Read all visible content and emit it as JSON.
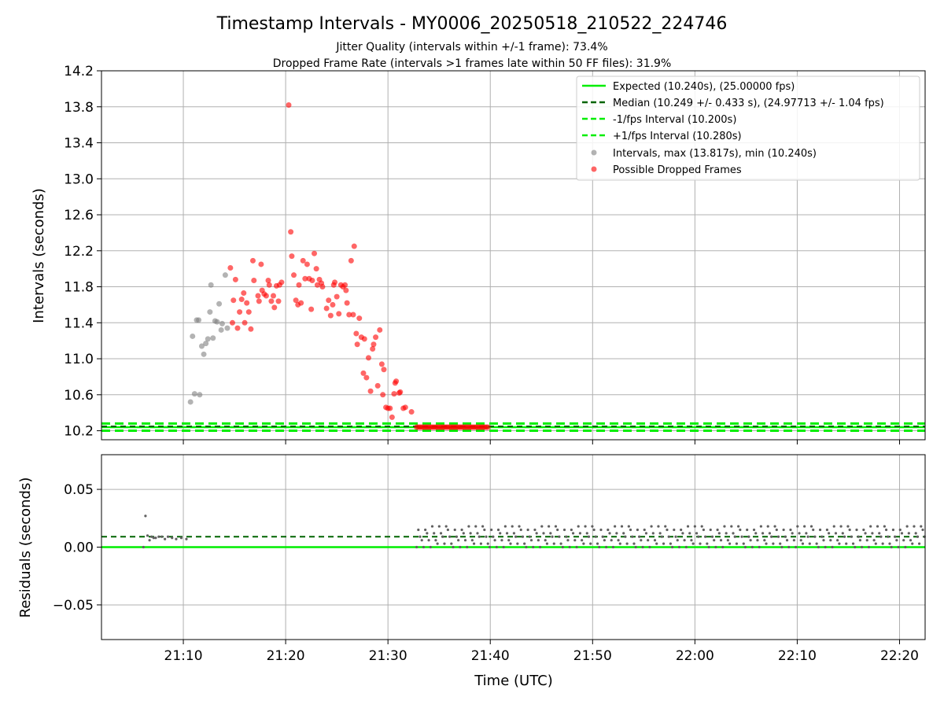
{
  "figure": {
    "title": "Timestamp Intervals - MY0006_20250518_210522_224746",
    "subtitle_jitter": "Jitter Quality (intervals within +/-1 frame): 73.4%",
    "subtitle_dropped": "Dropped Frame Rate (intervals >1 frames late within 50 FF files): 31.9%",
    "xlabel": "Time (UTC)"
  },
  "legend": {
    "expected": "Expected (10.240s), (25.00000 fps)",
    "median": "Median (10.249 +/- 0.433 s), (24.97713 +/- 1.04 fps)",
    "minus": "-1/fps Interval (10.200s)",
    "plus": "+1/fps Interval (10.280s)",
    "intervals": "Intervals, max (13.817s), min (10.240s)",
    "dropped": "Possible Dropped Frames"
  },
  "colors": {
    "expected": "#00ee00",
    "median": "#006400",
    "bounds": "#00ee00",
    "intervals": "#808080",
    "dropped": "#ff0000",
    "grid": "#b0b0b0"
  },
  "x_ticks": [
    "21:10",
    "21:20",
    "21:30",
    "21:40",
    "21:50",
    "22:00",
    "22:10",
    "22:20"
  ],
  "chart_data": [
    {
      "type": "scatter",
      "title": "Timestamp Intervals - MY0006_20250518_210522_224746",
      "xlabel": "",
      "ylabel": "Intervals (seconds)",
      "x_unit": "minutes after 21:00 UTC",
      "xlim": [
        "21:02",
        "22:22.5"
      ],
      "ylim": [
        10.1,
        14.2
      ],
      "yticks": [
        "10.2",
        "10.6",
        "11.0",
        "11.4",
        "11.8",
        "12.2",
        "12.6",
        "13.0",
        "13.4",
        "13.8",
        "14.2"
      ],
      "grid": true,
      "legend_position": "top-right",
      "lines": {
        "expected": 10.24,
        "median": 10.249,
        "minus_1_fps": 10.2,
        "plus_1_fps": 10.28
      },
      "series": [
        {
          "name": "Intervals, max (13.817s), min (10.240s)",
          "color": "#808080",
          "points": [
            [
              10.7,
              10.52
            ],
            [
              10.9,
              11.25
            ],
            [
              11.1,
              10.61
            ],
            [
              11.3,
              11.43
            ],
            [
              11.5,
              11.43
            ],
            [
              11.6,
              10.6
            ],
            [
              11.8,
              11.14
            ],
            [
              12.0,
              11.05
            ],
            [
              12.2,
              11.17
            ],
            [
              12.4,
              11.22
            ],
            [
              12.6,
              11.52
            ],
            [
              12.7,
              11.82
            ],
            [
              12.9,
              11.23
            ],
            [
              13.1,
              11.42
            ],
            [
              13.3,
              11.41
            ],
            [
              13.5,
              11.61
            ],
            [
              13.7,
              11.32
            ],
            [
              13.8,
              11.39
            ],
            [
              14.1,
              11.93
            ],
            [
              14.3,
              11.34
            ]
          ]
        },
        {
          "name": "Possible Dropped Frames",
          "color": "#ff0000",
          "points": [
            [
              14.6,
              12.01
            ],
            [
              14.8,
              11.4
            ],
            [
              14.9,
              11.65
            ],
            [
              15.1,
              11.88
            ],
            [
              15.3,
              11.34
            ],
            [
              15.5,
              11.52
            ],
            [
              15.7,
              11.66
            ],
            [
              15.9,
              11.73
            ],
            [
              16.0,
              11.4
            ],
            [
              16.2,
              11.62
            ],
            [
              16.4,
              11.52
            ],
            [
              16.6,
              11.33
            ],
            [
              16.8,
              12.09
            ],
            [
              16.9,
              11.87
            ],
            [
              17.3,
              11.7
            ],
            [
              17.4,
              11.64
            ],
            [
              17.6,
              12.05
            ],
            [
              17.7,
              11.76
            ],
            [
              17.9,
              11.72
            ],
            [
              18.1,
              11.7
            ],
            [
              18.3,
              11.87
            ],
            [
              18.4,
              11.82
            ],
            [
              18.6,
              11.64
            ],
            [
              18.8,
              11.7
            ],
            [
              18.9,
              11.57
            ],
            [
              19.1,
              11.81
            ],
            [
              19.3,
              11.64
            ],
            [
              19.4,
              11.82
            ],
            [
              19.6,
              11.85
            ],
            [
              20.3,
              13.82
            ],
            [
              20.5,
              12.41
            ],
            [
              20.6,
              12.14
            ],
            [
              20.8,
              11.93
            ],
            [
              21.0,
              11.65
            ],
            [
              21.2,
              11.6
            ],
            [
              21.3,
              11.82
            ],
            [
              21.5,
              11.62
            ],
            [
              21.7,
              12.09
            ],
            [
              21.9,
              11.89
            ],
            [
              22.1,
              12.05
            ],
            [
              22.3,
              11.89
            ],
            [
              22.5,
              11.55
            ],
            [
              22.6,
              11.87
            ],
            [
              22.8,
              12.17
            ],
            [
              23.0,
              12.0
            ],
            [
              23.1,
              11.82
            ],
            [
              23.3,
              11.88
            ],
            [
              23.5,
              11.84
            ],
            [
              23.6,
              11.8
            ],
            [
              24.0,
              11.56
            ],
            [
              24.2,
              11.65
            ],
            [
              24.4,
              11.48
            ],
            [
              24.6,
              11.6
            ],
            [
              24.7,
              11.82
            ],
            [
              24.8,
              11.85
            ],
            [
              25.0,
              11.69
            ],
            [
              25.2,
              11.5
            ],
            [
              25.4,
              11.82
            ],
            [
              25.6,
              11.8
            ],
            [
              25.8,
              11.82
            ],
            [
              25.9,
              11.76
            ],
            [
              26.0,
              11.62
            ],
            [
              26.2,
              11.49
            ],
            [
              26.4,
              12.09
            ],
            [
              26.6,
              11.49
            ],
            [
              26.7,
              12.25
            ],
            [
              26.9,
              11.28
            ],
            [
              27.0,
              11.16
            ],
            [
              27.2,
              11.45
            ],
            [
              27.4,
              11.24
            ],
            [
              27.6,
              10.84
            ],
            [
              27.7,
              11.22
            ],
            [
              27.9,
              10.79
            ],
            [
              28.1,
              11.01
            ],
            [
              28.3,
              10.64
            ],
            [
              28.5,
              11.11
            ],
            [
              28.6,
              11.16
            ],
            [
              28.8,
              11.24
            ],
            [
              29.0,
              10.7
            ],
            [
              29.2,
              11.32
            ],
            [
              29.4,
              10.94
            ],
            [
              29.5,
              10.6
            ],
            [
              29.6,
              10.88
            ],
            [
              29.8,
              10.46
            ],
            [
              30.0,
              10.45
            ],
            [
              30.2,
              10.45
            ],
            [
              30.4,
              10.35
            ],
            [
              30.6,
              10.61
            ],
            [
              30.7,
              10.73
            ],
            [
              30.8,
              10.75
            ],
            [
              31.1,
              10.62
            ],
            [
              31.2,
              10.63
            ],
            [
              31.5,
              10.45
            ],
            [
              31.7,
              10.46
            ],
            [
              32.3,
              10.41
            ]
          ],
          "cluster_at_10_24": {
            "from": "21:32.8",
            "to": "21:39.8"
          }
        }
      ]
    },
    {
      "type": "scatter",
      "xlabel": "Time (UTC)",
      "ylabel": "Residuals (seconds)",
      "ylim": [
        -0.08,
        0.08
      ],
      "yticks": [
        "−0.05",
        "0.00",
        "0.05"
      ],
      "grid": true,
      "lines": {
        "expected": 0.0,
        "median": 0.009
      },
      "series": [
        {
          "name": "Residuals",
          "color": "#808080",
          "early_points": [
            [
              6.1,
              0.0
            ],
            [
              6.3,
              0.027
            ],
            [
              6.5,
              0.01
            ],
            [
              6.7,
              0.006
            ],
            [
              6.9,
              0.009
            ],
            [
              7.1,
              0.008
            ],
            [
              7.3,
              0.008
            ],
            [
              7.6,
              0.009
            ],
            [
              7.9,
              0.009
            ],
            [
              8.2,
              0.007
            ],
            [
              8.5,
              0.009
            ],
            [
              8.9,
              0.008
            ],
            [
              9.3,
              0.007
            ],
            [
              9.8,
              0.008
            ],
            [
              10.3,
              0.007
            ]
          ],
          "late_band": {
            "from": "21:32.8",
            "to": "22:22.5",
            "values": [
              0.0,
              0.003,
              0.006,
              0.009,
              0.012,
              0.015,
              0.018
            ]
          }
        }
      ]
    }
  ]
}
